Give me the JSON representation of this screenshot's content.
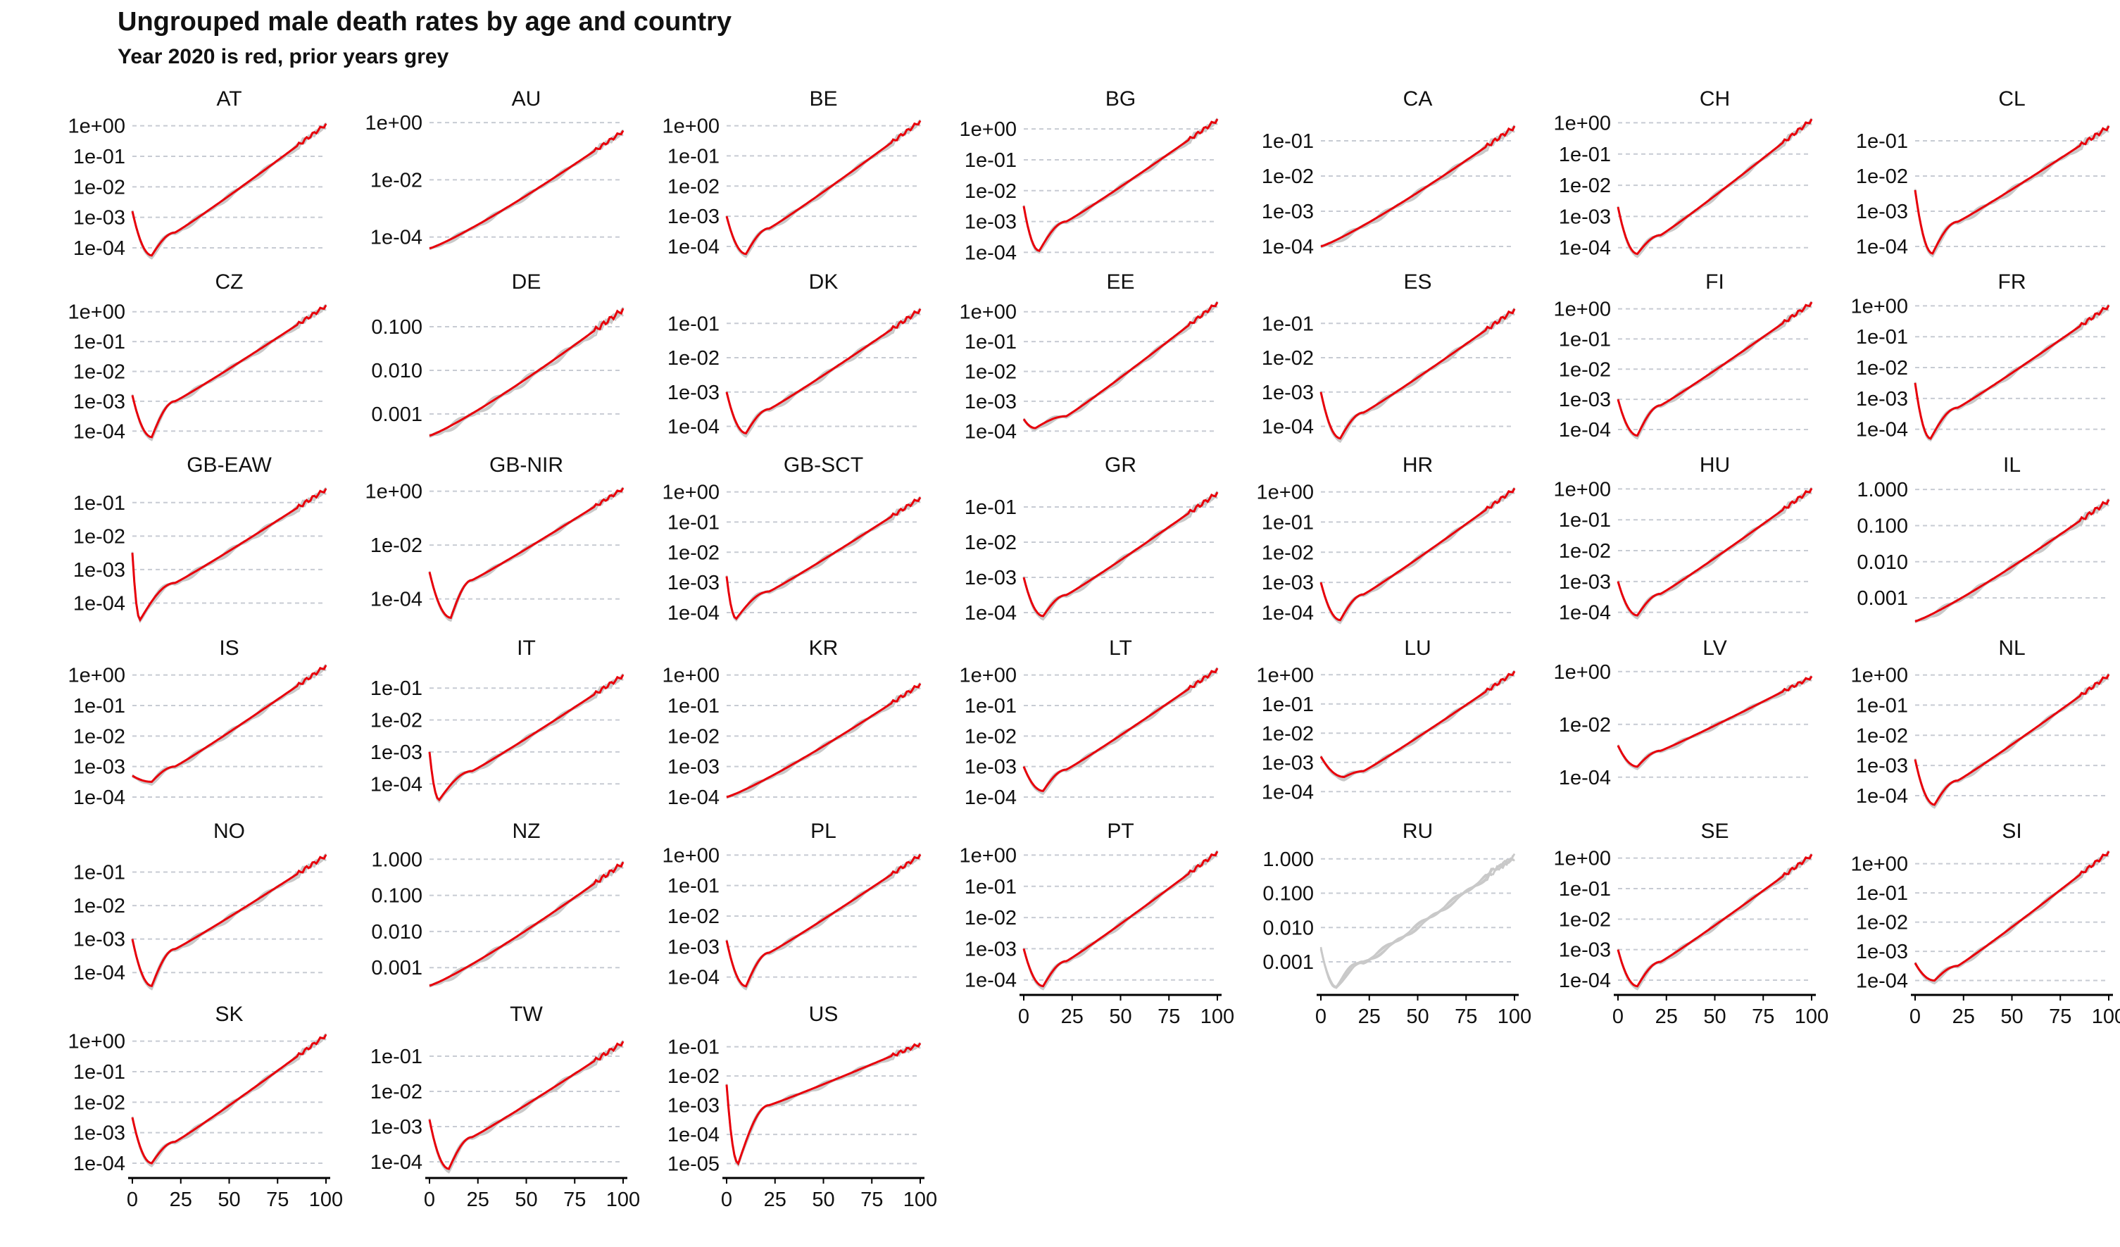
{
  "title": "Ungrouped male death rates by age and country",
  "subtitle": "Year 2020 is red, prior years grey",
  "colors": {
    "current": "#e8000b",
    "prior": "#c9c9c9",
    "grid": "#c7cbd3",
    "axis": "#000000",
    "text": "#111111"
  },
  "chart_data": {
    "type": "line",
    "x_ticks": [
      0,
      25,
      50,
      75,
      100
    ],
    "xlim": [
      0,
      100
    ],
    "yscale": "log",
    "grid": "horizontal dashed",
    "series": [
      {
        "year": "2020",
        "color": "red"
      },
      {
        "year": "prior years",
        "color": "grey"
      }
    ],
    "panels": [
      {
        "name": "AT",
        "yticks": [
          "1e+00",
          "1e-01",
          "1e-02",
          "1e-03",
          "1e-04"
        ],
        "ylim_log": [
          -4.3,
          0.2
        ],
        "young": [
          -2.8,
          -4.25,
          10
        ],
        "kink": -3.5,
        "end": 0.05
      },
      {
        "name": "AU",
        "yticks": [
          "1e+00",
          "1e-02",
          "1e-04"
        ],
        "ylim_log": [
          -4.7,
          0.1
        ],
        "young": [
          -4.4,
          -4.4,
          0
        ],
        "kink": -3.9,
        "end": -0.3
      },
      {
        "name": "BE",
        "yticks": [
          "1e+00",
          "1e-01",
          "1e-02",
          "1e-03",
          "1e-04"
        ],
        "ylim_log": [
          -4.35,
          0.2
        ],
        "young": [
          -3.0,
          -4.25,
          10
        ],
        "kink": -3.4,
        "end": 0.15
      },
      {
        "name": "BG",
        "yticks": [
          "1e+00",
          "1e-01",
          "1e-02",
          "1e-03",
          "1e-04"
        ],
        "ylim_log": [
          -4.15,
          0.3
        ],
        "young": [
          -2.5,
          -3.95,
          8
        ],
        "kink": -3.0,
        "end": 0.3
      },
      {
        "name": "CA",
        "yticks": [
          "1e-01",
          "1e-02",
          "1e-03",
          "1e-04"
        ],
        "ylim_log": [
          -4.3,
          -0.4
        ],
        "young": [
          -4.0,
          -4.0,
          0
        ],
        "kink": -3.3,
        "end": -0.6
      },
      {
        "name": "CH",
        "yticks": [
          "1e+00",
          "1e-01",
          "1e-02",
          "1e-03",
          "1e-04"
        ],
        "ylim_log": [
          -4.3,
          0.1
        ],
        "young": [
          -2.7,
          -4.2,
          10
        ],
        "kink": -3.6,
        "end": 0.1
      },
      {
        "name": "CL",
        "yticks": [
          "1e-01",
          "1e-02",
          "1e-03",
          "1e-04"
        ],
        "ylim_log": [
          -4.3,
          -0.4
        ],
        "young": [
          -2.4,
          -4.2,
          9
        ],
        "kink": -3.3,
        "end": -0.6
      },
      {
        "name": "CZ",
        "yticks": [
          "1e+00",
          "1e-01",
          "1e-02",
          "1e-03",
          "1e-04"
        ],
        "ylim_log": [
          -4.3,
          0.3
        ],
        "young": [
          -2.8,
          -4.2,
          10
        ],
        "kink": -3.0,
        "end": 0.2
      },
      {
        "name": "DE",
        "yticks": [
          "0.100",
          "0.010",
          "0.001"
        ],
        "ylim_log": [
          -3.6,
          -0.45
        ],
        "young": [
          -3.5,
          -3.5,
          0
        ],
        "kink": -3.3,
        "end": -0.6
      },
      {
        "name": "DK",
        "yticks": [
          "1e-01",
          "1e-02",
          "1e-03",
          "1e-04"
        ],
        "ylim_log": [
          -4.4,
          -0.4
        ],
        "young": [
          -3.0,
          -4.2,
          10
        ],
        "kink": -3.5,
        "end": -0.6
      },
      {
        "name": "EE",
        "yticks": [
          "1e+00",
          "1e-01",
          "1e-02",
          "1e-03",
          "1e-04"
        ],
        "ylim_log": [
          -4.3,
          0.3
        ],
        "young": [
          -3.6,
          -3.9,
          6
        ],
        "kink": -3.5,
        "end": 0.3
      },
      {
        "name": "ES",
        "yticks": [
          "1e-01",
          "1e-02",
          "1e-03",
          "1e-04"
        ],
        "ylim_log": [
          -4.4,
          -0.4
        ],
        "young": [
          -3.0,
          -4.35,
          10
        ],
        "kink": -3.6,
        "end": -0.6
      },
      {
        "name": "FI",
        "yticks": [
          "1e+00",
          "1e-01",
          "1e-02",
          "1e-03",
          "1e-04"
        ],
        "ylim_log": [
          -4.35,
          0.2
        ],
        "young": [
          -3.0,
          -4.2,
          10
        ],
        "kink": -3.2,
        "end": 0.2
      },
      {
        "name": "FR",
        "yticks": [
          "1e+00",
          "1e-01",
          "1e-02",
          "1e-03",
          "1e-04"
        ],
        "ylim_log": [
          -4.35,
          0.1
        ],
        "young": [
          -2.5,
          -4.3,
          8
        ],
        "kink": -3.3,
        "end": 0.0
      },
      {
        "name": "GB-EAW",
        "yticks": [
          "1e-01",
          "1e-02",
          "1e-03",
          "1e-04"
        ],
        "ylim_log": [
          -4.6,
          -0.5
        ],
        "young": [
          -2.5,
          -4.5,
          4
        ],
        "kink": -3.4,
        "end": -0.6
      },
      {
        "name": "GB-NIR",
        "yticks": [
          "1e+00",
          "1e-02",
          "1e-04"
        ],
        "ylim_log": [
          -4.9,
          0.2
        ],
        "young": [
          -3.0,
          -4.7,
          11
        ],
        "kink": -3.3,
        "end": 0.1
      },
      {
        "name": "GB-SCT",
        "yticks": [
          "1e+00",
          "1e-01",
          "1e-02",
          "1e-03",
          "1e-04"
        ],
        "ylim_log": [
          -4.35,
          0.2
        ],
        "young": [
          -2.8,
          -4.2,
          5
        ],
        "kink": -3.3,
        "end": -0.2
      },
      {
        "name": "GR",
        "yticks": [
          "1e-01",
          "1e-02",
          "1e-03",
          "1e-04"
        ],
        "ylim_log": [
          -4.3,
          -0.4
        ],
        "young": [
          -3.0,
          -4.1,
          10
        ],
        "kink": -3.5,
        "end": -0.6
      },
      {
        "name": "HR",
        "yticks": [
          "1e+00",
          "1e-01",
          "1e-02",
          "1e-03",
          "1e-04"
        ],
        "ylim_log": [
          -4.35,
          0.2
        ],
        "young": [
          -3.0,
          -4.25,
          10
        ],
        "kink": -3.4,
        "end": 0.1
      },
      {
        "name": "HU",
        "yticks": [
          "1e+00",
          "1e-01",
          "1e-02",
          "1e-03",
          "1e-04"
        ],
        "ylim_log": [
          -4.35,
          0.1
        ],
        "young": [
          -3.0,
          -4.1,
          10
        ],
        "kink": -3.4,
        "end": 0.0
      },
      {
        "name": "IL",
        "yticks": [
          "1.000",
          "0.100",
          "0.010",
          "0.001"
        ],
        "ylim_log": [
          -3.7,
          0.1
        ],
        "young": [
          -3.65,
          -3.65,
          0
        ],
        "kink": -3.3,
        "end": -0.3
      },
      {
        "name": "IS",
        "yticks": [
          "1e+00",
          "1e-01",
          "1e-02",
          "1e-03",
          "1e-04"
        ],
        "ylim_log": [
          -4.3,
          0.2
        ],
        "young": [
          -3.3,
          -3.5,
          10
        ],
        "kink": -3.0,
        "end": 0.3
      },
      {
        "name": "IT",
        "yticks": [
          "1e-01",
          "1e-02",
          "1e-03",
          "1e-04"
        ],
        "ylim_log": [
          -4.7,
          -0.4
        ],
        "young": [
          -3.0,
          -4.5,
          5
        ],
        "kink": -3.6,
        "end": -0.6
      },
      {
        "name": "KR",
        "yticks": [
          "1e+00",
          "1e-01",
          "1e-02",
          "1e-03",
          "1e-04"
        ],
        "ylim_log": [
          -4.3,
          0.2
        ],
        "young": [
          -4.0,
          -4.0,
          0
        ],
        "kink": -3.4,
        "end": -0.3
      },
      {
        "name": "LT",
        "yticks": [
          "1e+00",
          "1e-01",
          "1e-02",
          "1e-03",
          "1e-04"
        ],
        "ylim_log": [
          -4.3,
          0.2
        ],
        "young": [
          -3.0,
          -3.8,
          10
        ],
        "kink": -3.1,
        "end": 0.2
      },
      {
        "name": "LU",
        "yticks": [
          "1e+00",
          "1e-01",
          "1e-02",
          "1e-03",
          "1e-04"
        ],
        "ylim_log": [
          -4.5,
          0.2
        ],
        "young": [
          -2.8,
          -3.5,
          12
        ],
        "kink": -3.3,
        "end": 0.1
      },
      {
        "name": "LV",
        "yticks": [
          "1e+00",
          "1e-02",
          "1e-04"
        ],
        "ylim_log": [
          -5.1,
          0.1
        ],
        "young": [
          -2.8,
          -3.6,
          10
        ],
        "kink": -3.0,
        "end": -0.2
      },
      {
        "name": "NL",
        "yticks": [
          "1e+00",
          "1e-01",
          "1e-02",
          "1e-03",
          "1e-04"
        ],
        "ylim_log": [
          -4.35,
          0.2
        ],
        "young": [
          -2.8,
          -4.3,
          10
        ],
        "kink": -3.5,
        "end": 0.0
      },
      {
        "name": "NO",
        "yticks": [
          "1e-01",
          "1e-02",
          "1e-03",
          "1e-04"
        ],
        "ylim_log": [
          -4.5,
          -0.4
        ],
        "young": [
          -3.0,
          -4.4,
          10
        ],
        "kink": -3.3,
        "end": -0.5
      },
      {
        "name": "NZ",
        "yticks": [
          "1.000",
          "0.100",
          "0.010",
          "0.001"
        ],
        "ylim_log": [
          -3.6,
          0.2
        ],
        "young": [
          -3.5,
          -3.5,
          0
        ],
        "kink": -3.1,
        "end": -0.1
      },
      {
        "name": "PL",
        "yticks": [
          "1e+00",
          "1e-01",
          "1e-02",
          "1e-03",
          "1e-04"
        ],
        "ylim_log": [
          -4.4,
          0.1
        ],
        "young": [
          -2.8,
          -4.3,
          10
        ],
        "kink": -3.2,
        "end": 0.0
      },
      {
        "name": "PT",
        "yticks": [
          "1e+00",
          "1e-01",
          "1e-02",
          "1e-03",
          "1e-04"
        ],
        "ylim_log": [
          -4.3,
          0.1
        ],
        "young": [
          -3.0,
          -4.2,
          10
        ],
        "kink": -3.4,
        "end": 0.1
      },
      {
        "name": "RU",
        "yticks": [
          "1.000",
          "0.100",
          "0.010",
          "0.001"
        ],
        "ylim_log": [
          -3.8,
          0.2
        ],
        "young": [
          -2.6,
          -3.7,
          8
        ],
        "kink": -3.0,
        "end": 0.1,
        "no_2020": true
      },
      {
        "name": "SE",
        "yticks": [
          "1e+00",
          "1e-01",
          "1e-02",
          "1e-03",
          "1e-04"
        ],
        "ylim_log": [
          -4.3,
          0.2
        ],
        "young": [
          -3.0,
          -4.2,
          10
        ],
        "kink": -3.4,
        "end": 0.1
      },
      {
        "name": "SI",
        "yticks": [
          "1e+00",
          "1e-01",
          "1e-02",
          "1e-03",
          "1e-04"
        ],
        "ylim_log": [
          -4.3,
          0.4
        ],
        "young": [
          -3.4,
          -4.0,
          10
        ],
        "kink": -3.5,
        "end": 0.4
      },
      {
        "name": "SK",
        "yticks": [
          "1e+00",
          "1e-01",
          "1e-02",
          "1e-03",
          "1e-04"
        ],
        "ylim_log": [
          -4.3,
          0.2
        ],
        "young": [
          -2.5,
          -4.0,
          10
        ],
        "kink": -3.3,
        "end": 0.2
      },
      {
        "name": "TW",
        "yticks": [
          "1e-01",
          "1e-02",
          "1e-03",
          "1e-04"
        ],
        "ylim_log": [
          -4.3,
          -0.4
        ],
        "young": [
          -2.8,
          -4.2,
          10
        ],
        "kink": -3.3,
        "end": -0.6
      },
      {
        "name": "US",
        "yticks": [
          "1e-01",
          "1e-02",
          "1e-03",
          "1e-04",
          "1e-05"
        ],
        "ylim_log": [
          -5.3,
          -0.6
        ],
        "young": [
          -2.3,
          -5.0,
          6
        ],
        "kink": -3.0,
        "end": -0.9
      }
    ]
  }
}
